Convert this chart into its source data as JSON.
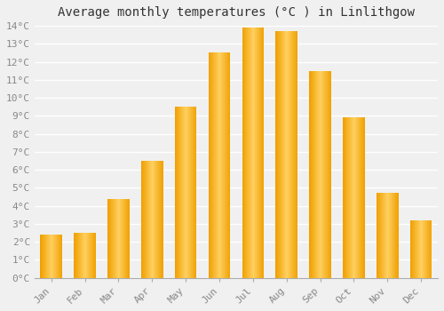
{
  "title": "Average monthly temperatures (°C ) in Linlithgow",
  "months": [
    "Jan",
    "Feb",
    "Mar",
    "Apr",
    "May",
    "Jun",
    "Jul",
    "Aug",
    "Sep",
    "Oct",
    "Nov",
    "Dec"
  ],
  "values": [
    2.4,
    2.5,
    4.4,
    6.5,
    9.5,
    12.5,
    13.9,
    13.7,
    11.5,
    8.9,
    4.7,
    3.2
  ],
  "bar_color": "#FFA500",
  "ylim": [
    0,
    14
  ],
  "yticks": [
    0,
    1,
    2,
    3,
    4,
    5,
    6,
    7,
    8,
    9,
    10,
    11,
    12,
    13,
    14
  ],
  "background_color": "#F0F0F0",
  "grid_color": "#FFFFFF",
  "title_fontsize": 10,
  "tick_fontsize": 8,
  "font_family": "monospace"
}
